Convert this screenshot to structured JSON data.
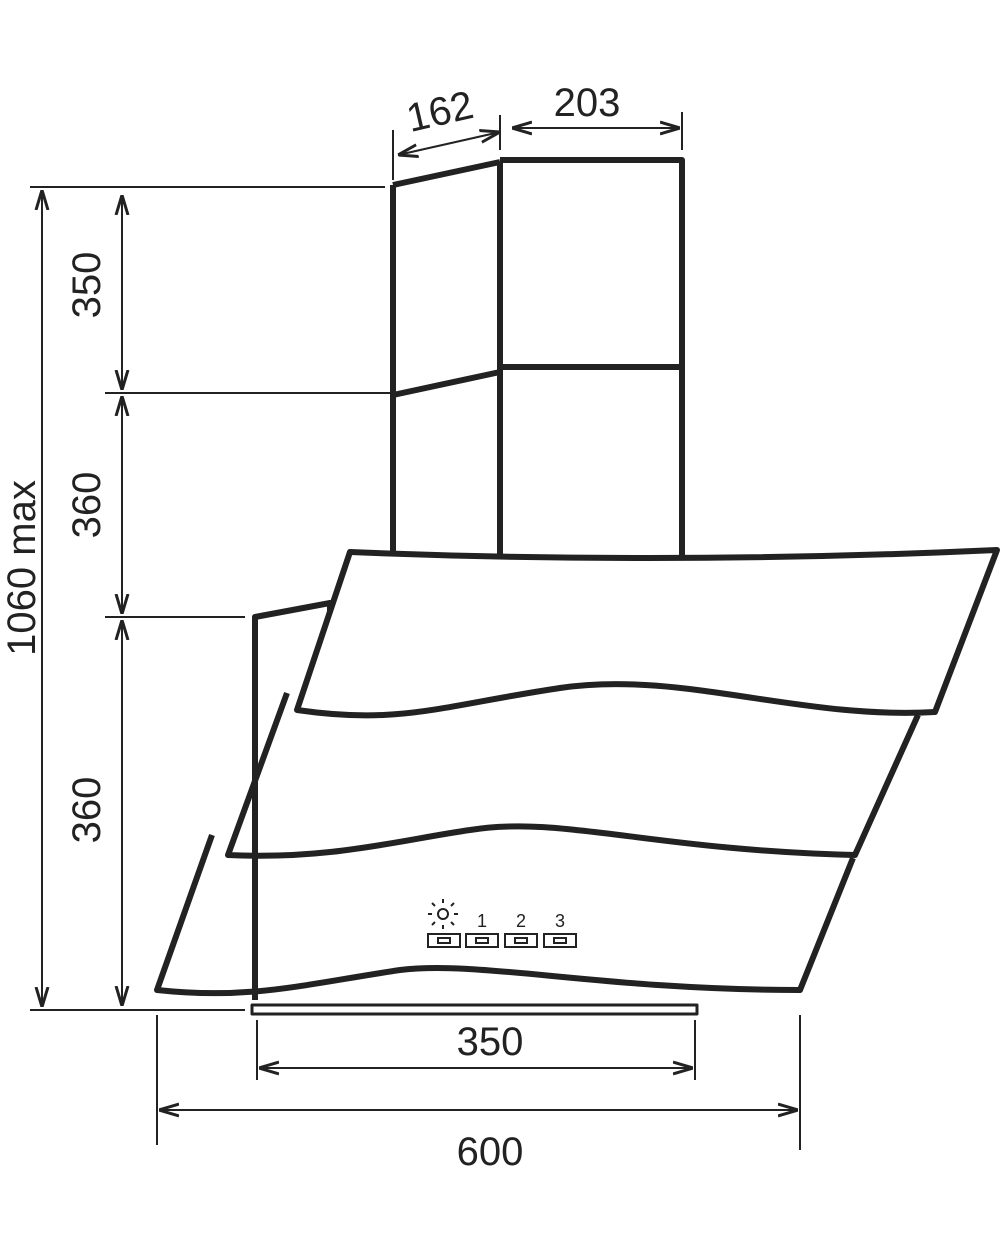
{
  "dimensions": {
    "top_depth": "162",
    "top_width": "203",
    "upper_chimney": "350",
    "lower_chimney": "360",
    "hood_height": "360",
    "total_height": "1060 max",
    "outlet_width": "350",
    "total_width": "600"
  },
  "controls": {
    "labels": [
      "1",
      "2",
      "3"
    ]
  }
}
